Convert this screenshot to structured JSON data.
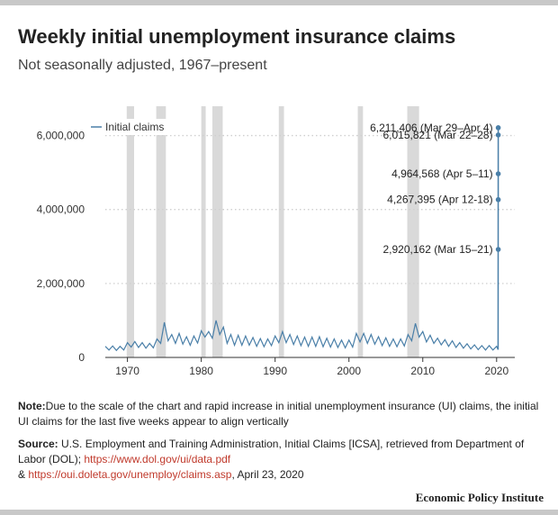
{
  "header": {
    "title": "Weekly initial unemployment insurance claims",
    "subtitle": "Not seasonally adjusted, 1967–present"
  },
  "chart_data": {
    "type": "line",
    "title": "Weekly initial unemployment insurance claims",
    "subtitle": "Not seasonally adjusted, 1967–present",
    "xlabel": "",
    "ylabel": "",
    "xlim": [
      1967,
      2021
    ],
    "ylim": [
      0,
      6500000
    ],
    "x_ticks": [
      1970,
      1980,
      1990,
      2000,
      2010,
      2020
    ],
    "y_ticks": [
      {
        "value": 0,
        "label": "0"
      },
      {
        "value": 2000000,
        "label": "2,000,000"
      },
      {
        "value": 4000000,
        "label": "4,000,000"
      },
      {
        "value": 6000000,
        "label": "6,000,000"
      }
    ],
    "grid": "horizontal dotted",
    "legend": {
      "position": "top-left"
    },
    "series": [
      {
        "name": "Initial claims",
        "color": "#4a7fa8",
        "x": [
          1967.0,
          1967.5,
          1968.0,
          1968.5,
          1969.0,
          1969.5,
          1970.0,
          1970.5,
          1971.0,
          1971.5,
          1972.0,
          1972.5,
          1973.0,
          1973.5,
          1974.0,
          1974.5,
          1975.0,
          1975.5,
          1976.0,
          1976.5,
          1977.0,
          1977.5,
          1978.0,
          1978.5,
          1979.0,
          1979.5,
          1980.0,
          1980.5,
          1981.0,
          1981.5,
          1982.0,
          1982.5,
          1983.0,
          1983.5,
          1984.0,
          1984.5,
          1985.0,
          1985.5,
          1986.0,
          1986.5,
          1987.0,
          1987.5,
          1988.0,
          1988.5,
          1989.0,
          1989.5,
          1990.0,
          1990.5,
          1991.0,
          1991.5,
          1992.0,
          1992.5,
          1993.0,
          1993.5,
          1994.0,
          1994.5,
          1995.0,
          1995.5,
          1996.0,
          1996.5,
          1997.0,
          1997.5,
          1998.0,
          1998.5,
          1999.0,
          1999.5,
          2000.0,
          2000.5,
          2001.0,
          2001.5,
          2002.0,
          2002.5,
          2003.0,
          2003.5,
          2004.0,
          2004.5,
          2005.0,
          2005.5,
          2006.0,
          2006.5,
          2007.0,
          2007.5,
          2008.0,
          2008.5,
          2009.0,
          2009.5,
          2010.0,
          2010.5,
          2011.0,
          2011.5,
          2012.0,
          2012.5,
          2013.0,
          2013.5,
          2014.0,
          2014.5,
          2015.0,
          2015.5,
          2016.0,
          2016.5,
          2017.0,
          2017.5,
          2018.0,
          2018.5,
          2019.0,
          2019.5,
          2020.0,
          2020.2
        ],
        "values": [
          300000,
          200000,
          310000,
          190000,
          300000,
          200000,
          400000,
          280000,
          430000,
          270000,
          400000,
          250000,
          380000,
          260000,
          500000,
          380000,
          950000,
          450000,
          620000,
          380000,
          650000,
          360000,
          560000,
          330000,
          580000,
          390000,
          720000,
          550000,
          700000,
          520000,
          1000000,
          620000,
          820000,
          380000,
          620000,
          330000,
          600000,
          330000,
          580000,
          330000,
          540000,
          300000,
          510000,
          290000,
          500000,
          320000,
          580000,
          400000,
          700000,
          400000,
          620000,
          350000,
          580000,
          320000,
          550000,
          300000,
          550000,
          300000,
          560000,
          290000,
          520000,
          280000,
          500000,
          270000,
          470000,
          260000,
          470000,
          280000,
          650000,
          420000,
          650000,
          380000,
          620000,
          360000,
          560000,
          320000,
          530000,
          300000,
          500000,
          290000,
          500000,
          310000,
          620000,
          450000,
          920000,
          550000,
          700000,
          420000,
          600000,
          380000,
          520000,
          340000,
          480000,
          300000,
          450000,
          270000,
          400000,
          250000,
          370000,
          230000,
          340000,
          210000,
          320000,
          200000,
          320000,
          200000,
          300000,
          211000
        ]
      },
      {
        "name": "",
        "color": "#4a7fa8",
        "x": [
          2020.22,
          2020.24,
          2020.26,
          2020.28,
          2020.3
        ],
        "values": [
          2920162,
          6015821,
          6211406,
          4964568,
          4267395
        ]
      }
    ],
    "annotations": [
      {
        "text": "6,211,406 (Mar 29–Apr 4)",
        "value": 6211406
      },
      {
        "text": "6,015,821 (Mar 22–28)",
        "value": 6015821
      },
      {
        "text": "4,964,568 (Apr 5–11)",
        "value": 4964568
      },
      {
        "text": "4,267,395 (Apr 12-18)",
        "value": 4267395
      },
      {
        "text": "2,920,162 (Mar 15–21)",
        "value": 2920162
      }
    ],
    "recessions": [
      [
        1969.9,
        1970.9
      ],
      [
        1973.9,
        1975.2
      ],
      [
        1980.0,
        1980.6
      ],
      [
        1981.5,
        1982.9
      ],
      [
        1990.5,
        1991.2
      ],
      [
        2001.2,
        2001.9
      ],
      [
        2007.9,
        2009.5
      ]
    ]
  },
  "footer": {
    "note_label": "Note:",
    "note_text": "Due to the scale of the chart and rapid increase in initial unemployment insurance (UI) claims, the initial UI claims for the last five weeks appear to align vertically",
    "source_label": "Source:",
    "source_text": " U.S. Employment and Training Administration, Initial Claims [ICSA], retrieved from Department of Labor (DOL); ",
    "source_link1": "https://www.dol.gov/ui/data.pdf",
    "source_mid": "& ",
    "source_link2": "https://oui.doleta.gov/unemploy/claims.asp",
    "source_end": ", April 23, 2020",
    "brand": "Economic Policy Institute"
  }
}
